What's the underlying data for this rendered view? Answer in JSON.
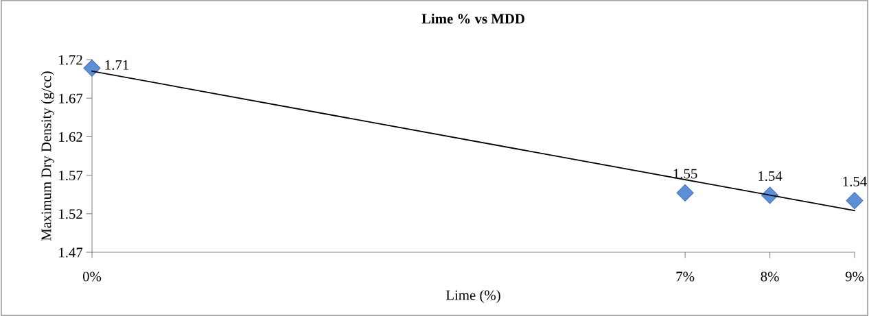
{
  "chart_data": {
    "type": "scatter",
    "title": "Lime % vs MDD",
    "xlabel": "Lime (%)",
    "ylabel": "Maximum Dry Density (g/cc)",
    "x": [
      0,
      7,
      8,
      9
    ],
    "series": [
      {
        "color": "#5b8fd6",
        "values": [
          1.709,
          1.547,
          1.544,
          1.537
        ],
        "value_labels": [
          "1.71",
          "1.55",
          "1.54",
          "1.54"
        ],
        "marker": "diamond"
      },
      {
        "type": "line",
        "color": "#000000",
        "x": [
          0,
          9
        ],
        "values": [
          1.705,
          1.524
        ],
        "marker": "none"
      }
    ],
    "xlim": [
      0,
      9
    ],
    "xticks": [
      {
        "value": 0,
        "label": "0%"
      },
      {
        "value": 7,
        "label": "7%"
      },
      {
        "value": 8,
        "label": "8%"
      },
      {
        "value": 9,
        "label": "9%"
      }
    ],
    "ylim": [
      1.47,
      1.72
    ],
    "yticks": [
      1.47,
      1.52,
      1.57,
      1.62,
      1.67,
      1.72
    ],
    "grid": false
  }
}
